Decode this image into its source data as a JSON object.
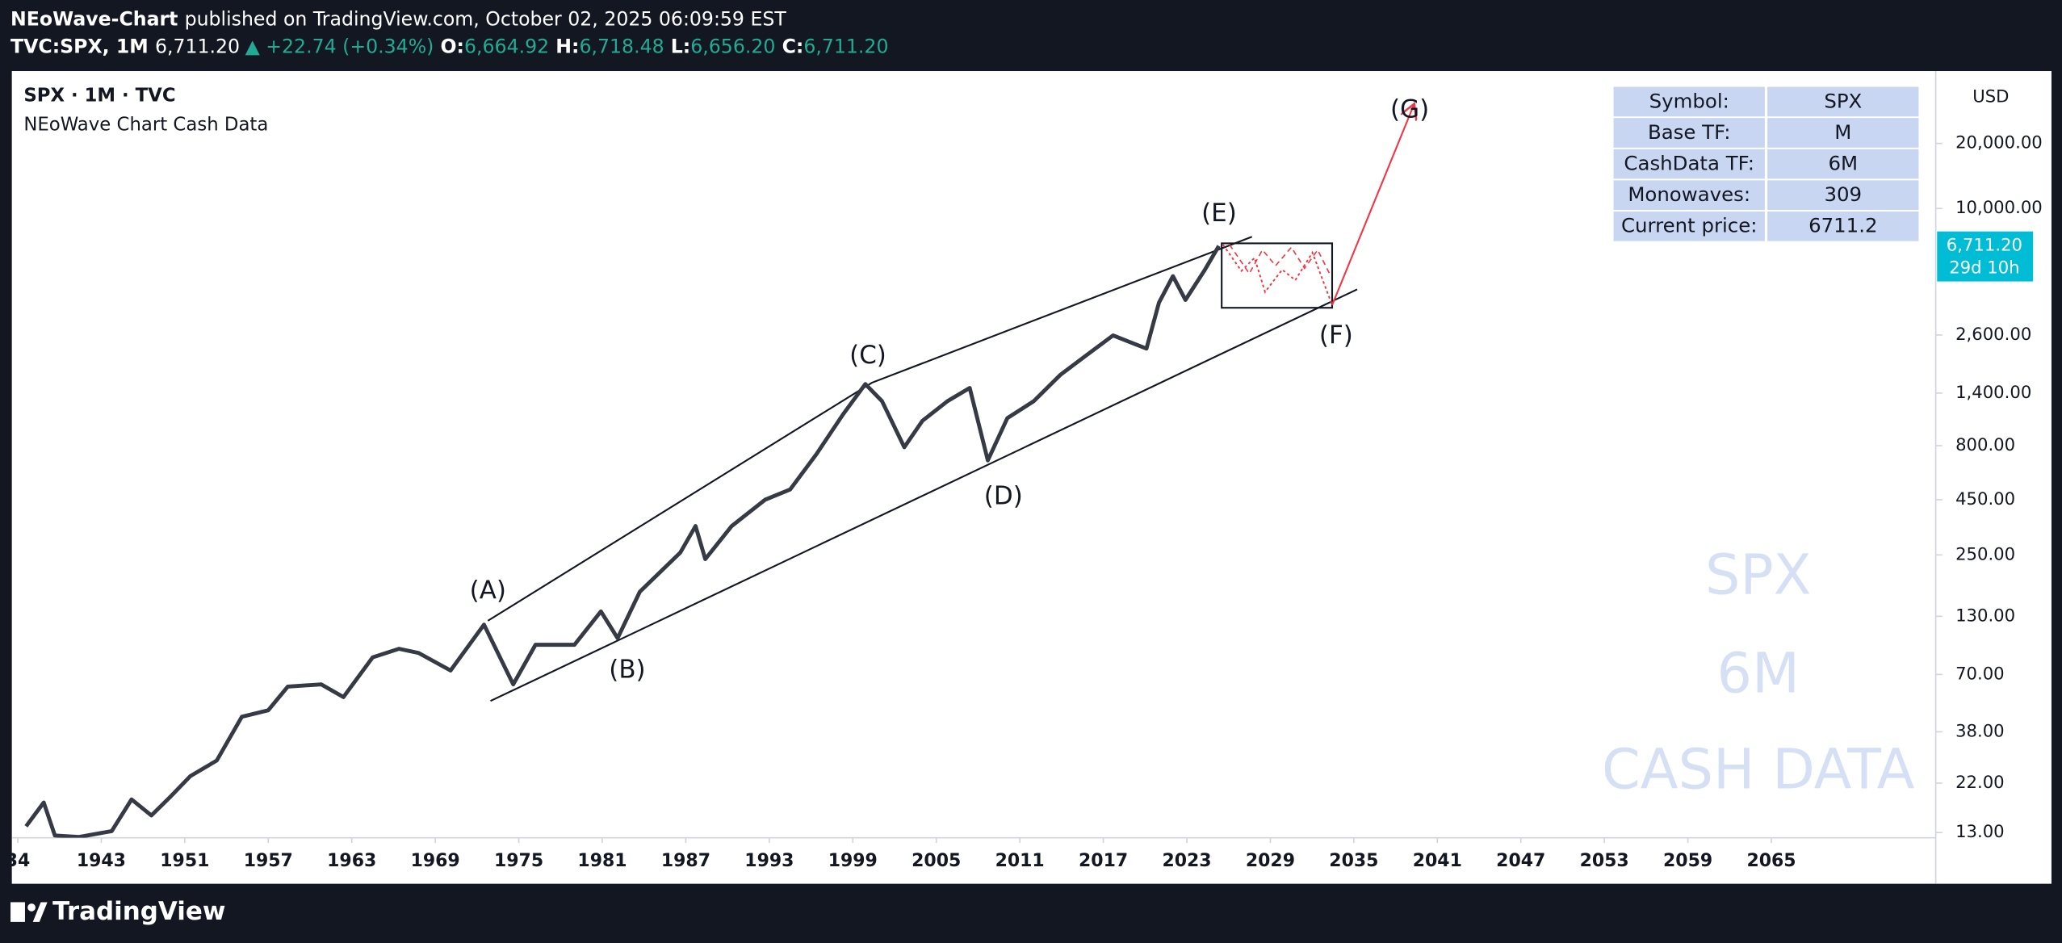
{
  "header": {
    "author": "NEoWave-Chart",
    "published": "published on TradingView.com, October 02, 2025 06:09:59 EST",
    "symbol": "TVC:SPX, 1M",
    "last": "6,711.20",
    "change": "▲ +22.74 (+0.34%)",
    "ohlc": [
      {
        "label": "O:",
        "value": "6,664.92"
      },
      {
        "label": "H:",
        "value": "6,718.48"
      },
      {
        "label": "L:",
        "value": "6,656.20"
      },
      {
        "label": "C:",
        "value": "6,711.20"
      }
    ]
  },
  "legend": {
    "title": "SPX · 1M · TVC",
    "indicator": "NEoWave Chart Cash Data"
  },
  "table": {
    "rows": [
      [
        "Symbol:",
        "SPX"
      ],
      [
        "Base TF:",
        "M"
      ],
      [
        "CashData TF:",
        "6M"
      ],
      [
        "Monowaves:",
        "309"
      ],
      [
        "Current price:",
        "6711.2"
      ]
    ]
  },
  "watermark": [
    "SPX",
    "6M",
    "CASH DATA"
  ],
  "price_label": {
    "price": "6,711.20",
    "countdown": "29d 10h",
    "currency": "USD"
  },
  "footer": {
    "brand": "TradingView"
  },
  "chart_data": {
    "type": "line",
    "log_scale": true,
    "grid": false,
    "color": "#363a45",
    "x": [
      1934.9,
      1936.8,
      1938,
      1940.6,
      1944,
      1945.9,
      1947.8,
      1949.7,
      1951.4,
      1953.3,
      1955.1,
      1957,
      1958.4,
      1960.8,
      1962.4,
      1964.5,
      1966.4,
      1967.8,
      1970.1,
      1972.5,
      1974.6,
      1976.2,
      1979,
      1980.9,
      1982.1,
      1983.7,
      1986.6,
      1987.7,
      1988.4,
      1990.3,
      1992.7,
      1994.5,
      1996.4,
      1998.3,
      1999.9,
      2001.1,
      2002.7,
      2004,
      2005.8,
      2007.4,
      2008.7,
      2010.1,
      2012,
      2013.9,
      2015.8,
      2017.7,
      2020.1,
      2021,
      2022,
      2022.9,
      2024.3,
      2025.3
    ],
    "values": [
      13.9,
      17.9,
      12.6,
      12.4,
      13.2,
      18.5,
      15.6,
      19.2,
      23.7,
      28,
      44.6,
      47.8,
      61.5,
      63,
      55,
      84,
      92,
      88,
      73,
      119,
      63,
      96,
      96,
      137,
      103,
      169,
      256,
      340,
      239,
      340,
      450,
      502,
      733,
      1117,
      1542,
      1285,
      787,
      1042,
      1285,
      1479,
      684,
      1072,
      1285,
      1698,
      2099,
      2588,
      2249,
      3673,
      4864,
      3776,
      5212,
      6711.2
    ],
    "ylim": [
      12.3,
      43200
    ],
    "yticks": [
      {
        "value": 20000,
        "label": "20,000.00"
      },
      {
        "value": 10000,
        "label": "10,000.00"
      },
      {
        "value": 2600,
        "label": "2,600.00"
      },
      {
        "value": 1400,
        "label": "1,400.00"
      },
      {
        "value": 800,
        "label": "800.00"
      },
      {
        "value": 450,
        "label": "450.00"
      },
      {
        "value": 250,
        "label": "250.00"
      },
      {
        "value": 130,
        "label": "130.00"
      },
      {
        "value": 70,
        "label": "70.00"
      },
      {
        "value": 38,
        "label": "38.00"
      },
      {
        "value": 22,
        "label": "22.00"
      },
      {
        "value": 13,
        "label": "13.00"
      }
    ],
    "xticks": [
      {
        "value": 1934,
        "label": "34"
      },
      1943,
      1951,
      1957,
      1963,
      1969,
      1975,
      1981,
      1987,
      1993,
      1999,
      2005,
      2011,
      2017,
      2023,
      2029,
      2035,
      2041,
      2047,
      2053,
      2059,
      2065
    ],
    "annotations": [
      "(A)",
      "(B)",
      "(C)",
      "(D)",
      "(E)",
      "(F)",
      "(G)"
    ]
  }
}
